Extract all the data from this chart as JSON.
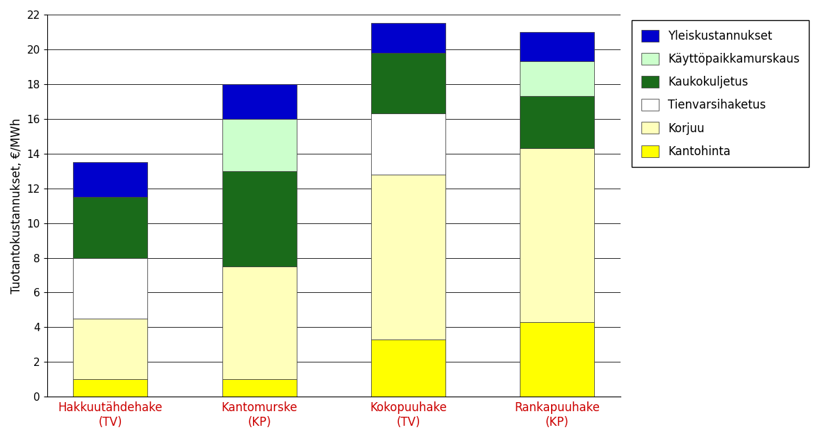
{
  "categories": [
    "Hakkuutähdehake\n(TV)",
    "Kantomurske\n(KP)",
    "Kokopuuhake\n(TV)",
    "Rankapuuhake\n(KP)"
  ],
  "series": {
    "Kantohinta": [
      1.0,
      1.0,
      3.3,
      4.3
    ],
    "Korjuu": [
      3.5,
      6.5,
      9.5,
      10.0
    ],
    "Tienvarsihaketus": [
      3.5,
      0.0,
      3.5,
      0.0
    ],
    "Kaukokuljetus": [
      3.5,
      5.5,
      3.5,
      3.0
    ],
    "Käyttöpaikkamurskaus": [
      0.0,
      3.0,
      0.0,
      2.0
    ],
    "Yleiskustannukset": [
      2.0,
      2.0,
      1.7,
      1.7
    ]
  },
  "colors": {
    "Kantohinta": "#ffff00",
    "Korjuu": "#ffffbb",
    "Tienvarsihaketus": "#ffffff",
    "Kaukokuljetus": "#1a6b1a",
    "Käyttöpaikkamurskaus": "#ccffcc",
    "Yleiskustannukset": "#0000cc"
  },
  "ylabel": "Tuotantokustannukset, €/MWh",
  "ylim": [
    0,
    22
  ],
  "yticks": [
    0,
    2,
    4,
    6,
    8,
    10,
    12,
    14,
    16,
    18,
    20,
    22
  ],
  "bar_width": 0.5,
  "layer_order": [
    "Kantohinta",
    "Korjuu",
    "Tienvarsihaketus",
    "Kaukokuljetus",
    "Käyttöpaikkamurskaus",
    "Yleiskustannukset"
  ],
  "legend_order": [
    "Yleiskustannukset",
    "Käyttöpaikkamurskaus",
    "Kaukokuljetus",
    "Tienvarsihaketus",
    "Korjuu",
    "Kantohinta"
  ],
  "edge_color": "#444444",
  "background_color": "#ffffff",
  "xlabel_color": "#cc0000",
  "grid_color": "#000000",
  "grid_linewidth": 0.6,
  "ylabel_fontsize": 12,
  "xlabel_fontsize": 12,
  "ytick_fontsize": 11,
  "legend_fontsize": 12
}
